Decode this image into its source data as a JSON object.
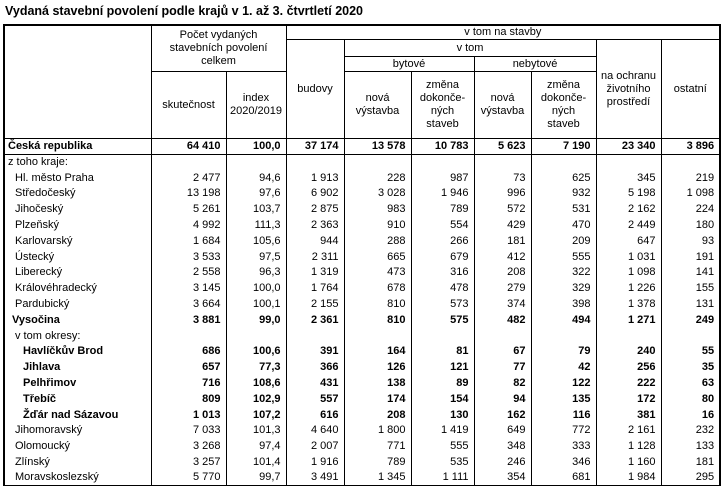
{
  "title": "Vydaná stavební povolení podle krajů v 1. až 3. čtvrtletí 2020",
  "colors": {
    "text": "#000000",
    "border": "#000000",
    "background": "#ffffff"
  },
  "table_header": {
    "region": "",
    "total_permits": "Počet vydaných\nstavebních povolení\ncelkem",
    "actual": "skutečnost",
    "index": "index\n2020/2019",
    "on_buildings": "v tom na stavby",
    "buildings": "budovy",
    "of_which": "v tom",
    "residential": "bytové",
    "non_residential": "nebytové",
    "new_construction": "nová\nvýstavba",
    "change_completed": "změna\ndokonče-\nných\nstaveb",
    "environment": "na ochranu\nživotního\nprostředí",
    "other": "ostatní"
  },
  "chart_data": {
    "type": "table",
    "title": "Vydaná stavební povolení podle krajů v 1. až 3. čtvrtletí 2020",
    "columns": [
      "region",
      "Počet vydaných stavebních povolení celkem – skutečnost",
      "Počet vydaných stavebních povolení celkem – index 2020/2019",
      "v tom na stavby – budovy",
      "v tom na stavby – budovy – v tom bytové – nová výstavba",
      "v tom na stavby – budovy – v tom bytové – změna dokončených staveb",
      "v tom na stavby – budovy – v tom nebytové – nová výstavba",
      "v tom na stavby – budovy – v tom nebytové – změna dokončených staveb",
      "v tom na stavby – na ochranu životního prostředí",
      "v tom na stavby – ostatní"
    ],
    "rows": [
      {
        "label": "Česká republika",
        "indent": 0,
        "bold": true,
        "rule": true,
        "values": [
          "64 410",
          "100,0",
          "37 174",
          "13 578",
          "10 783",
          "5 623",
          "7 190",
          "23 340",
          "3 896"
        ]
      },
      {
        "label": "z toho kraje:",
        "indent": 0,
        "bold": false,
        "values": []
      },
      {
        "label": "Hl. město Praha",
        "indent": 2,
        "bold": false,
        "values": [
          "2 477",
          "94,6",
          "1 913",
          "228",
          "987",
          "73",
          "625",
          "345",
          "219"
        ]
      },
      {
        "label": "Středočeský",
        "indent": 2,
        "bold": false,
        "values": [
          "13 198",
          "97,6",
          "6 902",
          "3 028",
          "1 946",
          "996",
          "932",
          "5 198",
          "1 098"
        ]
      },
      {
        "label": "Jihočeský",
        "indent": 2,
        "bold": false,
        "values": [
          "5 261",
          "103,7",
          "2 875",
          "983",
          "789",
          "572",
          "531",
          "2 162",
          "224"
        ]
      },
      {
        "label": "Plzeňský",
        "indent": 2,
        "bold": false,
        "values": [
          "4 992",
          "111,3",
          "2 363",
          "910",
          "554",
          "429",
          "470",
          "2 449",
          "180"
        ]
      },
      {
        "label": "Karlovarský",
        "indent": 2,
        "bold": false,
        "values": [
          "1 684",
          "105,6",
          "944",
          "288",
          "266",
          "181",
          "209",
          "647",
          "93"
        ]
      },
      {
        "label": "Ústecký",
        "indent": 2,
        "bold": false,
        "values": [
          "3 533",
          "97,5",
          "2 311",
          "665",
          "679",
          "412",
          "555",
          "1 031",
          "191"
        ]
      },
      {
        "label": "Liberecký",
        "indent": 2,
        "bold": false,
        "values": [
          "2 558",
          "96,3",
          "1 319",
          "473",
          "316",
          "208",
          "322",
          "1 098",
          "141"
        ]
      },
      {
        "label": "Královéhradecký",
        "indent": 2,
        "bold": false,
        "values": [
          "3 145",
          "100,0",
          "1 764",
          "678",
          "478",
          "279",
          "329",
          "1 226",
          "155"
        ]
      },
      {
        "label": "Pardubický",
        "indent": 2,
        "bold": false,
        "values": [
          "3 664",
          "100,1",
          "2 155",
          "810",
          "573",
          "374",
          "398",
          "1 378",
          "131"
        ]
      },
      {
        "label": "Vysočina",
        "indent": 1,
        "bold": true,
        "values": [
          "3 881",
          "99,0",
          "2 361",
          "810",
          "575",
          "482",
          "494",
          "1 271",
          "249"
        ]
      },
      {
        "label": "v tom okresy:",
        "indent": 2,
        "bold": false,
        "values": []
      },
      {
        "label": "Havlíčkův Brod",
        "indent": 3,
        "bold": true,
        "values": [
          "686",
          "100,6",
          "391",
          "164",
          "81",
          "67",
          "79",
          "240",
          "55"
        ]
      },
      {
        "label": "Jihlava",
        "indent": 3,
        "bold": true,
        "values": [
          "657",
          "77,3",
          "366",
          "126",
          "121",
          "77",
          "42",
          "256",
          "35"
        ]
      },
      {
        "label": "Pelhřimov",
        "indent": 3,
        "bold": true,
        "values": [
          "716",
          "108,6",
          "431",
          "138",
          "89",
          "82",
          "122",
          "222",
          "63"
        ]
      },
      {
        "label": "Třebíč",
        "indent": 3,
        "bold": true,
        "values": [
          "809",
          "102,9",
          "557",
          "174",
          "154",
          "94",
          "135",
          "172",
          "80"
        ]
      },
      {
        "label": "Žďár nad Sázavou",
        "indent": 3,
        "bold": true,
        "values": [
          "1 013",
          "107,2",
          "616",
          "208",
          "130",
          "162",
          "116",
          "381",
          "16"
        ]
      },
      {
        "label": "Jihomoravský",
        "indent": 2,
        "bold": false,
        "values": [
          "7 033",
          "101,3",
          "4 640",
          "1 800",
          "1 419",
          "649",
          "772",
          "2 161",
          "232"
        ]
      },
      {
        "label": "Olomoucký",
        "indent": 2,
        "bold": false,
        "values": [
          "3 268",
          "97,4",
          "2 007",
          "771",
          "555",
          "348",
          "333",
          "1 128",
          "133"
        ]
      },
      {
        "label": "Zlínský",
        "indent": 2,
        "bold": false,
        "values": [
          "3 257",
          "101,4",
          "1 916",
          "789",
          "535",
          "246",
          "346",
          "1 160",
          "181"
        ]
      },
      {
        "label": "Moravskoslezský",
        "indent": 2,
        "bold": false,
        "values": [
          "5 770",
          "99,7",
          "3 491",
          "1 345",
          "1 111",
          "354",
          "681",
          "1 984",
          "295"
        ]
      }
    ]
  }
}
